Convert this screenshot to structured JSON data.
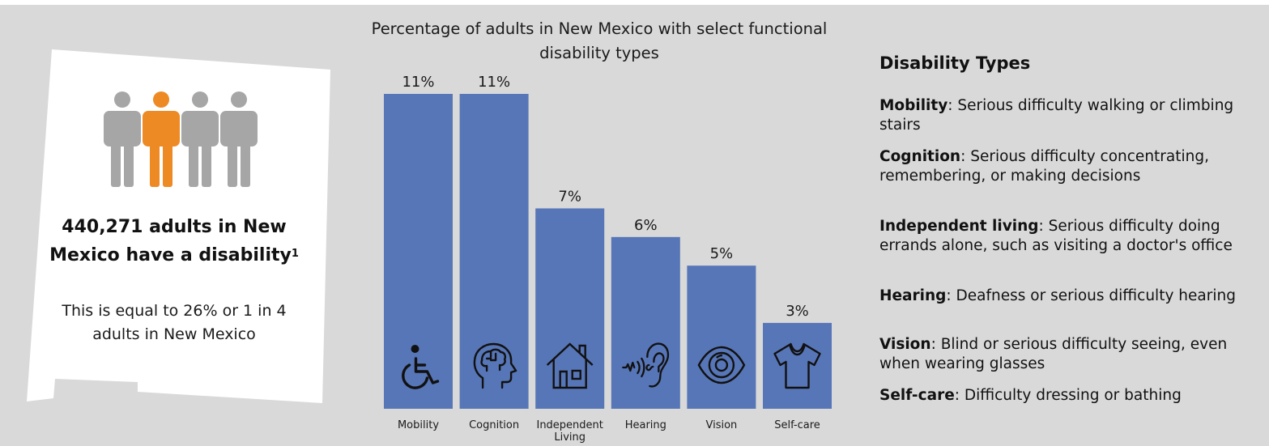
{
  "summary": {
    "headline": "440,271 adults in New Mexico have a disability",
    "footnote_marker": "1",
    "subtext": "This is equal to 26% or 1 in 4 adults in New Mexico",
    "people_icons": [
      "person-icon",
      "person-icon-highlighted",
      "person-icon",
      "person-icon"
    ],
    "highlight_color": "#ee8a24",
    "person_color": "#a6a6a6"
  },
  "chart_data": {
    "type": "bar",
    "title": "Percentage of adults in New Mexico with select functional disability types",
    "categories": [
      "Mobility",
      "Cognition",
      "Independent Living",
      "Hearing",
      "Vision",
      "Self-care"
    ],
    "values": [
      11,
      11,
      7,
      6,
      5,
      3
    ],
    "data_labels": [
      "11%",
      "11%",
      "7%",
      "6%",
      "5%",
      "3%"
    ],
    "icons": [
      "wheelchair-icon",
      "brain-head-icon",
      "house-icon",
      "ear-icon",
      "eye-icon",
      "shirt-icon"
    ],
    "unit": "%",
    "bar_color": "#5776b7",
    "ylim": [
      0,
      11
    ]
  },
  "legend": {
    "title": "Disability Types",
    "items": [
      {
        "term": "Mobility",
        "definition": ": Serious difficulty walking or climbing stairs"
      },
      {
        "term": "Cognition",
        "definition": ": Serious difficulty concentrating, remembering, or making decisions"
      },
      {
        "term": "Independent living",
        "definition": ": Serious difficulty doing errands alone, such as visiting a doctor's office"
      },
      {
        "term": "Hearing",
        "definition": ": Deafness or serious difficulty hearing"
      },
      {
        "term": "Vision",
        "definition": ": Blind or serious difficulty seeing, even when wearing glasses"
      },
      {
        "term": "Self-care",
        "definition": ": Difficulty dressing or bathing"
      }
    ]
  }
}
